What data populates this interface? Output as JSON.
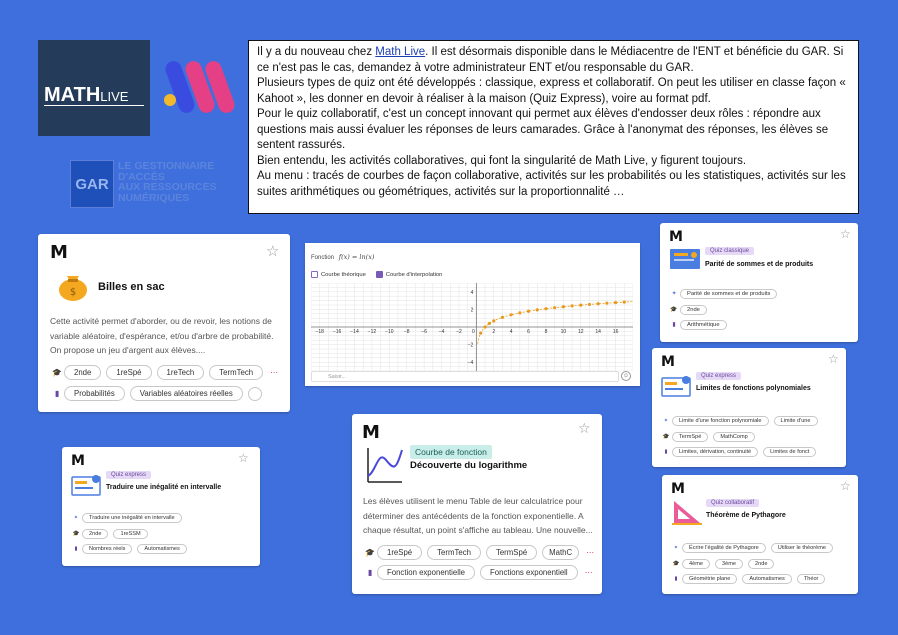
{
  "logos": {
    "mathlive_text": "MATH",
    "mathlive_suffix": "LIVE",
    "gar_box": "GAR",
    "gar_line1": "LE GESTIONNAIRE",
    "gar_line2": "D'ACCÈS",
    "gar_line3": "AUX RESSOURCES",
    "gar_line4": "NUMÉRIQUES",
    "colors": {
      "m_pink": "#e53f86",
      "m_blue": "#3a4be0",
      "m_yellow": "#f3b92e"
    }
  },
  "announcement": {
    "p1_before": "Il y a du nouveau chez ",
    "p1_link": "Math Live",
    "p1_after": ". Il est désormais disponible dans le Médiacentre de l'ENT et bénéficie du GAR. Si ce n'est pas le cas, demandez à votre administrateur ENT et/ou responsable du GAR.",
    "p2": "Plusieurs types de quiz ont été développés : classique, express et collaboratif. On peut les utiliser en classe façon « Kahoot », les donner en devoir à réaliser à la maison (Quiz Express), voire au format pdf.",
    "p3": "Pour le quiz collaboratif, c'est un concept innovant qui permet aux élèves d'endosser deux rôles : répondre aux questions mais aussi évaluer les réponses de leurs camarades. Grâce à l'anonymat des réponses, les élèves se sentent rassurés.",
    "p4": "Bien entendu, les activités collaboratives, qui font la singularité de Math Live, y figurent toujours.",
    "p5": "Au menu : tracés de courbes de façon collaborative, activités sur les probabilités ou les statistiques, activités sur les suites arithmétiques ou géométriques, activités sur la proportionnalité …"
  },
  "cards": {
    "billes": {
      "title": "Billes en sac",
      "desc": "Cette activité permet d'aborder, ou de revoir, les notions de variable aléatoire, d'espérance, et/ou d'arbre de probabilité. On propose un jeu d'argent aux élèves....",
      "levels": [
        "2nde",
        "1reSpé",
        "1reTech",
        "TermTech"
      ],
      "themes": [
        "Probabilités",
        "Variables aléatoires réelles",
        ""
      ]
    },
    "parite": {
      "badge": "Quiz classique",
      "title": "Parité de sommes et de produits",
      "objectives": [
        "Parité de sommes et de produits"
      ],
      "levels": [
        "2nde"
      ],
      "themes": [
        "Arithmétique"
      ]
    },
    "limites": {
      "badge": "Quiz express",
      "title": "Limites de fonctions polynomiales",
      "objectives": [
        "Limite d'une fonction polynomiale",
        "Limite d'une"
      ],
      "levels": [
        "TermSpé",
        "MathComp"
      ],
      "themes": [
        "Limites, dérivation, continuité",
        "Limites de fonct"
      ]
    },
    "inegalite": {
      "badge": "Quiz express",
      "title": "Traduire une inégalité en intervalle",
      "objectives": [
        "Traduire une inégalité en intervalle"
      ],
      "levels": [
        "2nde",
        "1reSSM"
      ],
      "themes": [
        "Nombres réels",
        "Automatismes"
      ]
    },
    "logarithme": {
      "badge": "Courbe de fonction",
      "title": "Découverte du logarithme",
      "desc": "Les élèves utilisent le menu Table de leur calculatrice pour déterminer des antécédents de la fonction exponentielle. A chaque résultat, un point s'affiche au tableau. Une nouvelle...",
      "levels": [
        "1reSpé",
        "TermTech",
        "TermSpé",
        "MathC"
      ],
      "themes": [
        "Fonction exponentielle",
        "Fonctions exponentiell"
      ]
    },
    "pythagore": {
      "badge": "Quiz collaboratif",
      "title": "Théorème de Pythagore",
      "objectives": [
        "Écrire l'égalité de Pythagore",
        "Utiliser le théorème"
      ],
      "levels": [
        "4ème",
        "3ème",
        "2nde"
      ],
      "themes": [
        "Géométrie plane",
        "Automatismes",
        "Théor"
      ]
    }
  },
  "graph": {
    "fonction_label": "Fonction",
    "formula": "f(x) = ln(x)",
    "check1": "Courbe théorique",
    "check2": "Courbe d'interpolation",
    "input_placeholder": "Saisir...",
    "x_ticks": [
      "−18",
      "−16",
      "−14",
      "−12",
      "−10",
      "−8",
      "−6",
      "−4",
      "−2",
      "0",
      "2",
      "4",
      "6",
      "8",
      "10",
      "12",
      "14",
      "16"
    ],
    "y_ticks": [
      "4",
      "2",
      "0",
      "−2",
      "−4"
    ],
    "points_color": "#e89a1e"
  }
}
